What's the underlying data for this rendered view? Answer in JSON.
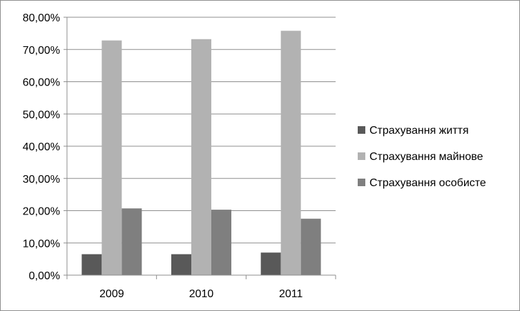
{
  "chart_data": {
    "type": "bar",
    "categories": [
      "2009",
      "2010",
      "2011"
    ],
    "series": [
      {
        "name": "Страхування життя",
        "values": [
          6.5,
          6.5,
          7.0
        ],
        "color": "#595959"
      },
      {
        "name": "Страхування  майнове",
        "values": [
          72.8,
          73.2,
          75.8
        ],
        "color": "#b2b2b2"
      },
      {
        "name": "Страхування особисте",
        "values": [
          20.7,
          20.3,
          17.5
        ],
        "color": "#7f7f7f"
      }
    ],
    "title": "",
    "xlabel": "",
    "ylabel": "",
    "ylim": [
      0,
      80
    ],
    "y_ticks": [
      0,
      10,
      20,
      30,
      40,
      50,
      60,
      70,
      80
    ],
    "y_tick_labels": [
      "0,00%",
      "10,00%",
      "20,00%",
      "30,00%",
      "40,00%",
      "50,00%",
      "60,00%",
      "70,00%",
      "80,00%"
    ],
    "grid": true,
    "legend_position": "right"
  }
}
